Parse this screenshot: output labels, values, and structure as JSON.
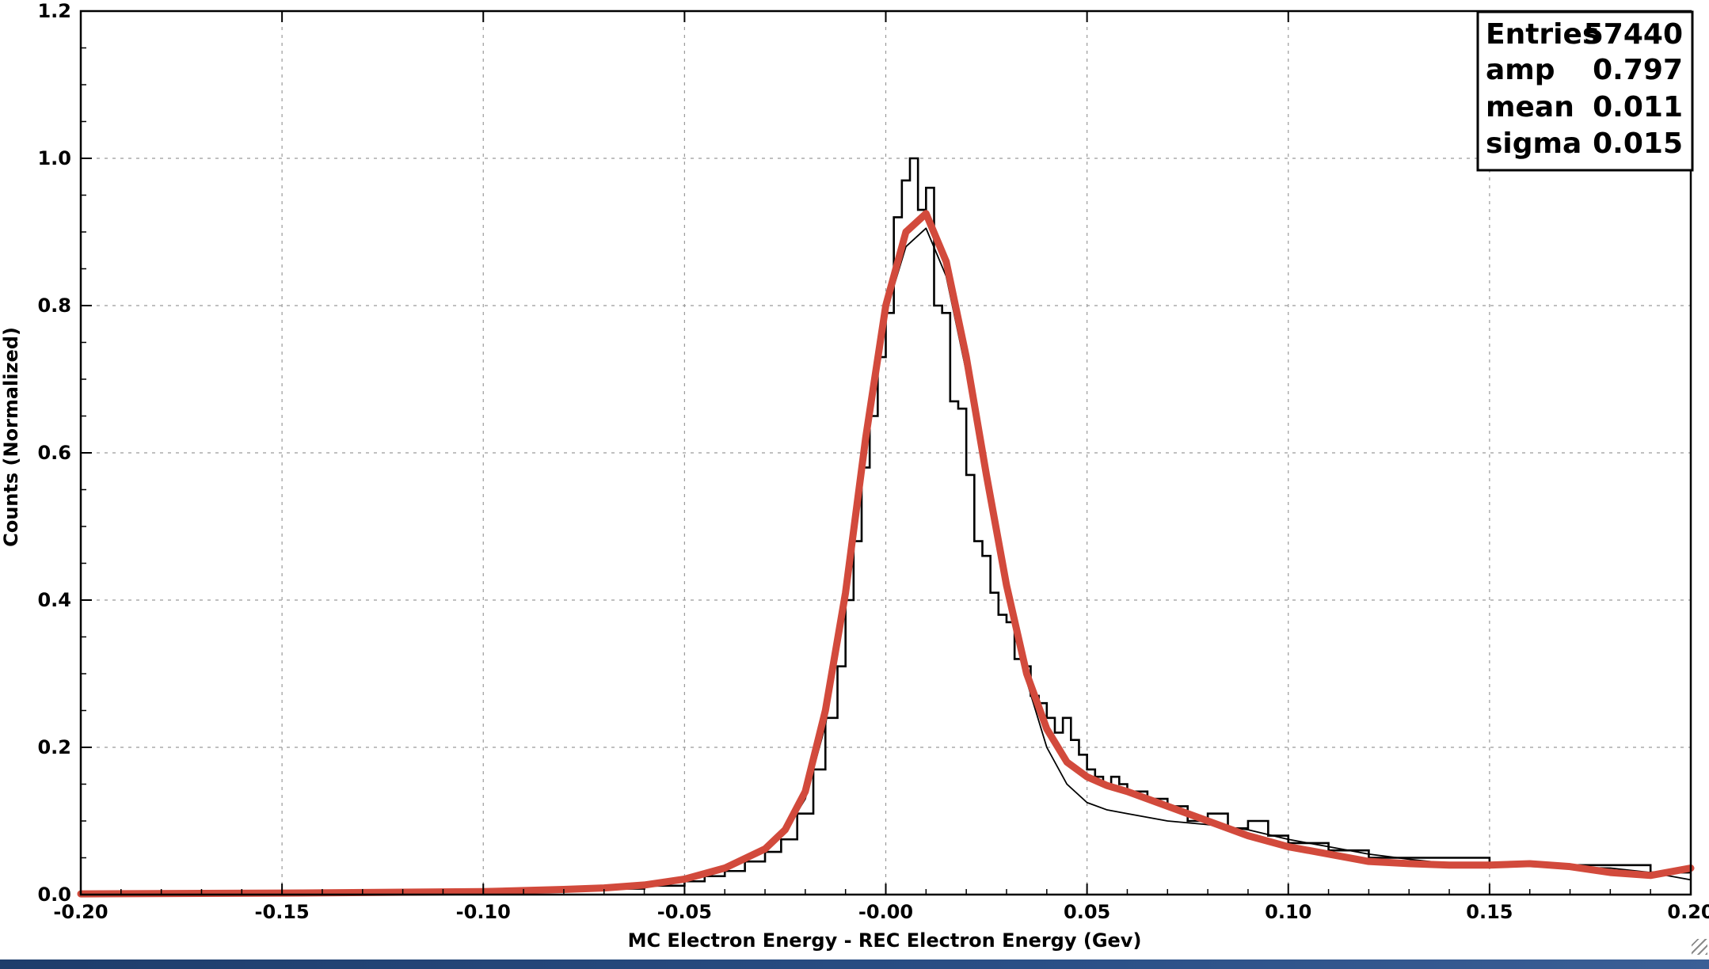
{
  "chart_data": {
    "type": "line",
    "xlabel": "MC Electron Energy - REC Electron Energy (Gev)",
    "ylabel": "Counts (Normalized)",
    "xlim": [
      -0.2,
      0.2
    ],
    "ylim": [
      0,
      1.2
    ],
    "x_ticks": [
      "-0.20",
      "-0.15",
      "-0.10",
      "-0.05",
      "-0.00",
      "0.05",
      "0.10",
      "0.15",
      "0.20"
    ],
    "y_ticks": [
      "0.0",
      "0.2",
      "0.4",
      "0.6",
      "0.8",
      "1.0",
      "1.2"
    ],
    "grid": true,
    "stats_box": {
      "placement": "top-right",
      "rows": [
        {
          "label": "Entries",
          "value": "57440"
        },
        {
          "label": "amp",
          "value": "0.797"
        },
        {
          "label": "mean",
          "value": "0.011"
        },
        {
          "label": "sigma",
          "value": "0.015"
        }
      ]
    },
    "series": [
      {
        "kind": "histogram",
        "color": "#000000",
        "x": [
          -0.2,
          -0.1,
          -0.08,
          -0.07,
          -0.06,
          -0.05,
          -0.045,
          -0.04,
          -0.035,
          -0.03,
          -0.026,
          -0.022,
          -0.018,
          -0.015,
          -0.012,
          -0.01,
          -0.008,
          -0.006,
          -0.004,
          -0.002,
          0.0,
          0.002,
          0.004,
          0.006,
          0.008,
          0.01,
          0.012,
          0.014,
          0.016,
          0.018,
          0.02,
          0.022,
          0.024,
          0.026,
          0.028,
          0.03,
          0.032,
          0.034,
          0.036,
          0.038,
          0.04,
          0.042,
          0.044,
          0.046,
          0.048,
          0.05,
          0.052,
          0.054,
          0.056,
          0.058,
          0.06,
          0.065,
          0.07,
          0.075,
          0.08,
          0.085,
          0.09,
          0.095,
          0.1,
          0.105,
          0.11,
          0.12,
          0.13,
          0.14,
          0.15,
          0.16,
          0.17,
          0.18,
          0.19,
          0.195,
          0.2
        ],
        "y": [
          0.002,
          0.004,
          0.006,
          0.008,
          0.012,
          0.018,
          0.025,
          0.032,
          0.045,
          0.058,
          0.075,
          0.11,
          0.17,
          0.24,
          0.31,
          0.4,
          0.48,
          0.58,
          0.65,
          0.73,
          0.79,
          0.92,
          0.97,
          1.0,
          0.93,
          0.96,
          0.8,
          0.79,
          0.67,
          0.66,
          0.57,
          0.48,
          0.46,
          0.41,
          0.38,
          0.37,
          0.32,
          0.31,
          0.27,
          0.26,
          0.24,
          0.22,
          0.24,
          0.21,
          0.19,
          0.17,
          0.16,
          0.15,
          0.16,
          0.15,
          0.14,
          0.13,
          0.12,
          0.1,
          0.11,
          0.09,
          0.1,
          0.08,
          0.07,
          0.07,
          0.06,
          0.05,
          0.05,
          0.05,
          0.04,
          0.04,
          0.04,
          0.04,
          0.03,
          0.03,
          0.03
        ]
      },
      {
        "kind": "fit",
        "color": "#000000",
        "x": [
          -0.2,
          -0.15,
          -0.1,
          -0.08,
          -0.06,
          -0.05,
          -0.04,
          -0.03,
          -0.025,
          -0.02,
          -0.015,
          -0.01,
          -0.005,
          0.0,
          0.005,
          0.01,
          0.015,
          0.02,
          0.025,
          0.03,
          0.035,
          0.04,
          0.045,
          0.05,
          0.055,
          0.06,
          0.07,
          0.08,
          0.09,
          0.1,
          0.11,
          0.12,
          0.13,
          0.14,
          0.15,
          0.16,
          0.17,
          0.18,
          0.19,
          0.2
        ],
        "y": [
          0.001,
          0.002,
          0.004,
          0.007,
          0.012,
          0.02,
          0.035,
          0.06,
          0.085,
          0.13,
          0.23,
          0.39,
          0.6,
          0.79,
          0.88,
          0.905,
          0.84,
          0.71,
          0.56,
          0.41,
          0.29,
          0.2,
          0.15,
          0.125,
          0.115,
          0.11,
          0.1,
          0.095,
          0.088,
          0.075,
          0.065,
          0.055,
          0.048,
          0.042,
          0.04,
          0.038,
          0.037,
          0.036,
          0.03,
          0.02
        ]
      },
      {
        "kind": "fit",
        "color": "#d24a3c",
        "x": [
          -0.2,
          -0.15,
          -0.1,
          -0.08,
          -0.07,
          -0.06,
          -0.05,
          -0.04,
          -0.03,
          -0.025,
          -0.02,
          -0.015,
          -0.01,
          -0.005,
          0.0,
          0.005,
          0.01,
          0.015,
          0.02,
          0.025,
          0.03,
          0.035,
          0.04,
          0.045,
          0.05,
          0.055,
          0.06,
          0.07,
          0.08,
          0.09,
          0.1,
          0.11,
          0.12,
          0.13,
          0.14,
          0.15,
          0.16,
          0.17,
          0.18,
          0.19,
          0.2
        ],
        "y": [
          0.001,
          0.002,
          0.004,
          0.007,
          0.009,
          0.013,
          0.021,
          0.036,
          0.062,
          0.088,
          0.14,
          0.25,
          0.41,
          0.62,
          0.8,
          0.9,
          0.925,
          0.86,
          0.73,
          0.57,
          0.42,
          0.3,
          0.225,
          0.18,
          0.16,
          0.148,
          0.14,
          0.12,
          0.1,
          0.08,
          0.065,
          0.055,
          0.045,
          0.042,
          0.04,
          0.04,
          0.042,
          0.038,
          0.03,
          0.026,
          0.036
        ]
      }
    ]
  }
}
